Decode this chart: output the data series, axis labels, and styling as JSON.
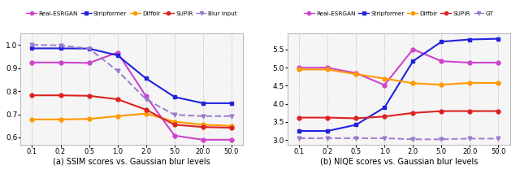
{
  "x_labels": [
    "0.1",
    "0.2",
    "0.5",
    "1.0",
    "2.0",
    "5.0",
    "20.0",
    "50.0"
  ],
  "ssim": {
    "Real-ESRGAN": [
      0.924,
      0.924,
      0.922,
      0.967,
      0.778,
      0.608,
      0.59,
      0.59
    ],
    "Stripformer": [
      0.985,
      0.985,
      0.984,
      0.955,
      0.855,
      0.775,
      0.748,
      0.748
    ],
    "Diffbir": [
      0.678,
      0.678,
      0.68,
      0.692,
      0.703,
      0.668,
      0.655,
      0.65
    ],
    "SUPIR": [
      0.782,
      0.782,
      0.78,
      0.765,
      0.72,
      0.655,
      0.645,
      0.642
    ],
    "Blur Input": [
      1.0,
      0.998,
      0.984,
      0.888,
      0.765,
      0.698,
      0.692,
      0.692
    ]
  },
  "niqe": {
    "Real-ESRGAN": [
      5.0,
      5.0,
      4.85,
      4.52,
      5.51,
      5.18,
      5.14,
      5.14
    ],
    "Stripformer": [
      3.25,
      3.25,
      3.42,
      3.9,
      5.18,
      5.72,
      5.78,
      5.8
    ],
    "Diffbir": [
      4.95,
      4.95,
      4.82,
      4.7,
      4.57,
      4.53,
      4.58,
      4.58
    ],
    "SUPIR": [
      3.62,
      3.62,
      3.6,
      3.65,
      3.75,
      3.8,
      3.8,
      3.8
    ],
    "GT": [
      3.05,
      3.05,
      3.05,
      3.05,
      3.02,
      3.02,
      3.04,
      3.04
    ]
  },
  "colors": {
    "Real-ESRGAN": "#cc44cc",
    "Stripformer": "#2222dd",
    "Diffbir": "#ff9900",
    "SUPIR": "#dd2222",
    "Blur Input": "#9977cc",
    "GT": "#9977cc"
  },
  "ssim_ylim": [
    0.57,
    1.05
  ],
  "niqe_ylim": [
    2.88,
    5.95
  ],
  "ssim_yticks": [
    0.6,
    0.7,
    0.8,
    0.9,
    1.0
  ],
  "niqe_yticks": [
    3.0,
    3.5,
    4.0,
    4.5,
    5.0,
    5.5
  ],
  "figsize": [
    6.4,
    2.09
  ],
  "dpi": 100,
  "xlabel_ssim": "(a) SSIM scores vs. Gaussian blur levels",
  "xlabel_niqe": "(b) NIQE scores vs. Gaussian blur levels",
  "legend_left": [
    "Real-ESRGAN",
    "Stripformer",
    "Diffbir",
    "SUPIR",
    "Blur Input"
  ],
  "legend_right": [
    "Real-ESRGAN",
    "Stripformer",
    "Diffbir",
    "SUPIR",
    "GT"
  ],
  "bg_color": "#f0f0f0"
}
